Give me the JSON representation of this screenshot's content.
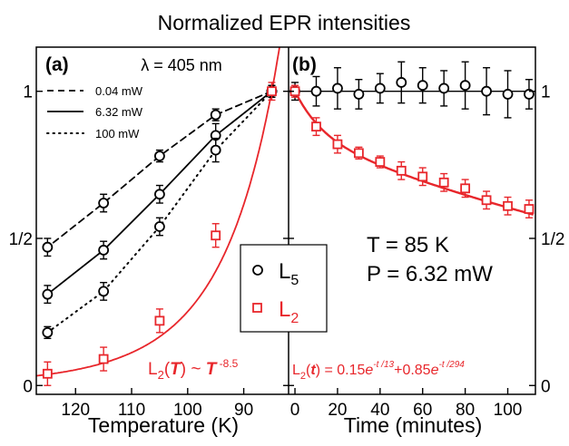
{
  "title": "Normalized EPR intensities",
  "colors": {
    "black": "#000000",
    "red": "#e8262b"
  },
  "chart_data": [
    {
      "type": "scatter",
      "panel_label": "(a)",
      "annotation": "λ = 405 nm",
      "xlabel": "Temperature (K)",
      "xlim": [
        127,
        82
      ],
      "ylim": [
        -0.03,
        1.15
      ],
      "x_ticks": [
        120,
        110,
        100,
        90
      ],
      "y_ticks": [
        {
          "value": 0,
          "label": "0"
        },
        {
          "value": 0.5,
          "label": "1/2"
        },
        {
          "value": 1,
          "label": "1"
        }
      ],
      "power_legend": [
        {
          "label": "0.04 mW",
          "dash": "dashed"
        },
        {
          "label": "6.32 mW",
          "dash": "solid"
        },
        {
          "label": "100 mW",
          "dash": "dotted"
        }
      ],
      "series": [
        {
          "marker": "circle",
          "color": "#000000",
          "power": "0.04 mW",
          "x": [
            125,
            115,
            105,
            95,
            85
          ],
          "y": [
            0.47,
            0.62,
            0.78,
            0.92,
            1.0
          ],
          "err": [
            0.03,
            0.03,
            0.02,
            0.02,
            0.02
          ]
        },
        {
          "marker": "circle",
          "color": "#000000",
          "power": "6.32 mW",
          "x": [
            125,
            115,
            105,
            95,
            85
          ],
          "y": [
            0.31,
            0.46,
            0.65,
            0.85,
            1.0
          ],
          "err": [
            0.03,
            0.03,
            0.03,
            0.04,
            0.02
          ]
        },
        {
          "marker": "circle",
          "color": "#000000",
          "power": "100 mW",
          "x": [
            125,
            115,
            105,
            95,
            85
          ],
          "y": [
            0.18,
            0.32,
            0.54,
            0.8,
            1.0
          ],
          "err": [
            0.02,
            0.03,
            0.03,
            0.04,
            0.02
          ]
        },
        {
          "marker": "square",
          "color": "#e8262b",
          "x": [
            125,
            115,
            105,
            95,
            85
          ],
          "y": [
            0.04,
            0.09,
            0.22,
            0.51,
            1.0
          ],
          "err": [
            0.04,
            0.04,
            0.04,
            0.04,
            0.03
          ]
        }
      ],
      "fit_label": {
        "prefix": "L",
        "sub": "2",
        "arg": "T",
        "mid": " ~ ",
        "base": "T",
        "exp": " -8.5"
      }
    },
    {
      "type": "scatter",
      "panel_label": "(b)",
      "xlabel": "Time (minutes)",
      "xlim": [
        -3,
        113
      ],
      "ylim": [
        -0.03,
        1.15
      ],
      "x_ticks": [
        0,
        20,
        40,
        60,
        80,
        100
      ],
      "y_ticks": [
        {
          "value": 0,
          "label": "0"
        },
        {
          "value": 0.5,
          "label": "1/2"
        },
        {
          "value": 1,
          "label": "1"
        }
      ],
      "series": [
        {
          "name": "L",
          "name_sub": "5",
          "marker": "circle",
          "color": "#000000",
          "x": [
            0,
            10,
            20,
            30,
            40,
            50,
            60,
            70,
            80,
            90,
            100,
            110
          ],
          "y": [
            1.0,
            1.0,
            1.01,
            0.99,
            1.01,
            1.03,
            1.02,
            1.01,
            1.02,
            1.0,
            0.99,
            0.99
          ],
          "err": [
            0.03,
            0.05,
            0.07,
            0.05,
            0.05,
            0.07,
            0.06,
            0.06,
            0.08,
            0.08,
            0.08,
            0.05
          ]
        },
        {
          "name": "L",
          "name_sub": "2",
          "marker": "square",
          "color": "#e8262b",
          "x": [
            0,
            10,
            20,
            30,
            40,
            50,
            60,
            70,
            80,
            90,
            100,
            110
          ],
          "y": [
            1.0,
            0.88,
            0.82,
            0.79,
            0.76,
            0.73,
            0.71,
            0.69,
            0.67,
            0.63,
            0.61,
            0.6
          ],
          "err": [
            0.02,
            0.03,
            0.03,
            0.02,
            0.02,
            0.03,
            0.03,
            0.03,
            0.03,
            0.03,
            0.03,
            0.03
          ]
        }
      ],
      "annotation_lines": [
        "T = 85 K",
        "P = 6.32 mW"
      ],
      "fit_label": {
        "prefix": "L",
        "sub": "2",
        "arg": "t",
        "eq": " = 0.15",
        "e1": "e",
        "exp1": "-t /13",
        "plus": "+0.85",
        "e2": "e",
        "exp2": "-t /294"
      }
    }
  ]
}
